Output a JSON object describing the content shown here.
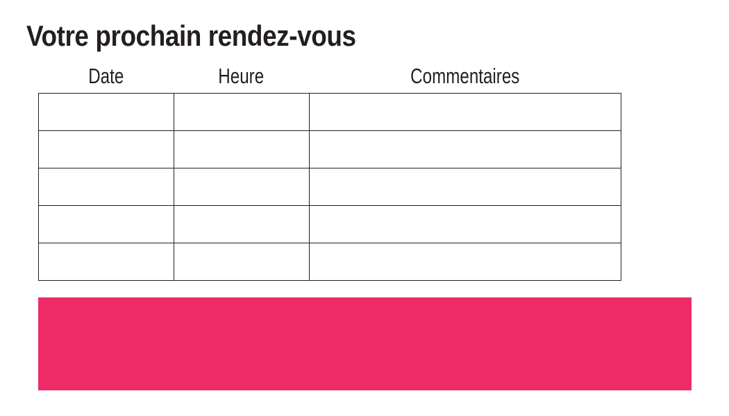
{
  "page": {
    "title": "Votre prochain rendez-vous"
  },
  "table": {
    "headers": [
      "Date",
      "Heure",
      "Commentaires"
    ],
    "rows": [
      [
        "",
        "",
        ""
      ],
      [
        "",
        "",
        ""
      ],
      [
        "",
        "",
        ""
      ],
      [
        "",
        "",
        ""
      ],
      [
        "",
        "",
        ""
      ]
    ]
  },
  "colors": {
    "ink": "#231f20",
    "accent_pink": "#ee2a67",
    "background": "#ffffff"
  }
}
